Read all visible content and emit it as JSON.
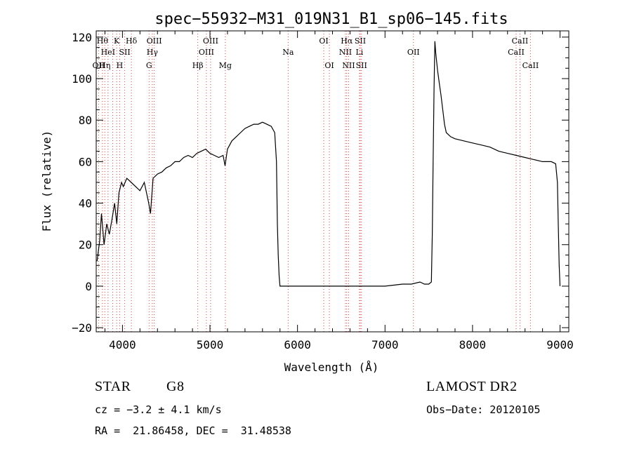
{
  "chart_data": {
    "type": "line",
    "title": "spec−55932−M31_019N31_B1_sp06−145.fits",
    "xlabel": "Wavelength (Å)",
    "ylabel": "Flux (relative)",
    "xlim": [
      3700,
      9100
    ],
    "ylim": [
      -22,
      123
    ],
    "xticks": [
      4000,
      5000,
      6000,
      7000,
      8000,
      9000
    ],
    "yticks": [
      -20,
      0,
      20,
      40,
      60,
      80,
      100,
      120
    ],
    "ytick_labels": [
      "−20",
      "0",
      "20",
      "40",
      "60",
      "80",
      "100",
      "120"
    ],
    "grid": false,
    "series": [
      {
        "x": [
          3710,
          3740,
          3760,
          3790,
          3820,
          3850,
          3880,
          3910,
          3935,
          3960,
          3990,
          4010,
          4050,
          4100,
          4150,
          4200,
          4250,
          4300,
          4320,
          4350,
          4400,
          4450,
          4500,
          4550,
          4600,
          4650,
          4700,
          4750,
          4800,
          4850,
          4900,
          4950,
          5000,
          5050,
          5100,
          5150,
          5172,
          5200,
          5250,
          5300,
          5350,
          5400,
          5450,
          5500,
          5550,
          5600,
          5650,
          5700,
          5740,
          5760,
          5770,
          5780,
          5790,
          5800,
          5900,
          6000,
          6500,
          7000,
          7200,
          7300,
          7400,
          7450,
          7500,
          7530,
          7540,
          7550,
          7560,
          7570,
          7580,
          7600,
          7620,
          7640,
          7660,
          7680,
          7700,
          7750,
          7800,
          7900,
          8000,
          8100,
          8200,
          8300,
          8400,
          8500,
          8600,
          8700,
          8800,
          8900,
          8950,
          8970,
          8980,
          8990,
          9000
        ],
        "y": [
          12,
          22,
          35,
          20,
          30,
          25,
          32,
          40,
          30,
          45,
          50,
          48,
          52,
          50,
          48,
          46,
          50,
          40,
          35,
          52,
          54,
          55,
          57,
          58,
          60,
          60,
          62,
          63,
          62,
          64,
          65,
          66,
          64,
          63,
          62,
          63,
          58,
          66,
          70,
          72,
          74,
          76,
          77,
          78,
          78,
          79,
          78,
          77,
          74,
          60,
          30,
          15,
          5,
          0,
          0,
          0,
          0,
          0,
          1,
          1,
          2,
          1,
          1,
          2,
          25,
          60,
          95,
          118,
          112,
          104,
          98,
          92,
          85,
          78,
          74,
          72,
          71,
          70,
          69,
          68,
          67,
          65,
          64,
          63,
          62,
          61,
          60,
          60,
          59,
          50,
          30,
          10,
          0
        ]
      }
    ],
    "line_markers": [
      {
        "x": 3727,
        "label": "OII",
        "row": 3
      },
      {
        "x": 3771,
        "label": "Hθ",
        "row": 1
      },
      {
        "x": 3798,
        "label": "Hη",
        "row": 3
      },
      {
        "x": 3835,
        "label": "HeI",
        "row": 2
      },
      {
        "x": 3889,
        "label": "",
        "row": 2
      },
      {
        "x": 3934,
        "label": "K",
        "row": 1
      },
      {
        "x": 3968,
        "label": "H",
        "row": 3
      },
      {
        "x": 4026,
        "label": "SII",
        "row": 2
      },
      {
        "x": 4102,
        "label": "Hδ",
        "row": 1
      },
      {
        "x": 4304,
        "label": "G",
        "row": 3
      },
      {
        "x": 4341,
        "label": "Hγ",
        "row": 2
      },
      {
        "x": 4363,
        "label": "OIII",
        "row": 1
      },
      {
        "x": 4861,
        "label": "Hβ",
        "row": 3
      },
      {
        "x": 4959,
        "label": "OIII",
        "row": 2
      },
      {
        "x": 5007,
        "label": "OIII",
        "row": 1
      },
      {
        "x": 5175,
        "label": "Mg",
        "row": 3
      },
      {
        "x": 5893,
        "label": "Na",
        "row": 2
      },
      {
        "x": 6300,
        "label": "OI",
        "row": 1
      },
      {
        "x": 6364,
        "label": "OI",
        "row": 3
      },
      {
        "x": 6548,
        "label": "NII",
        "row": 2
      },
      {
        "x": 6563,
        "label": "Hα",
        "row": 1
      },
      {
        "x": 6584,
        "label": "NII",
        "row": 3
      },
      {
        "x": 6708,
        "label": "Li",
        "row": 2
      },
      {
        "x": 6717,
        "label": "SII",
        "row": 1
      },
      {
        "x": 6731,
        "label": "SII",
        "row": 3
      },
      {
        "x": 7325,
        "label": "OII",
        "row": 2
      },
      {
        "x": 8498,
        "label": "CaII",
        "row": 2
      },
      {
        "x": 8542,
        "label": "CaII",
        "row": 1
      },
      {
        "x": 8662,
        "label": "CaII",
        "row": 3
      }
    ],
    "marker_color": "#d04040"
  },
  "info": {
    "object_class": "STAR",
    "subclass": "G8",
    "survey": "LAMOST DR2",
    "redshift": "cz = −3.2 ± 4.1 km/s",
    "obs_date": "Obs−Date: 20120105",
    "coords": "RA =  21.86458, DEC =  31.48538"
  }
}
